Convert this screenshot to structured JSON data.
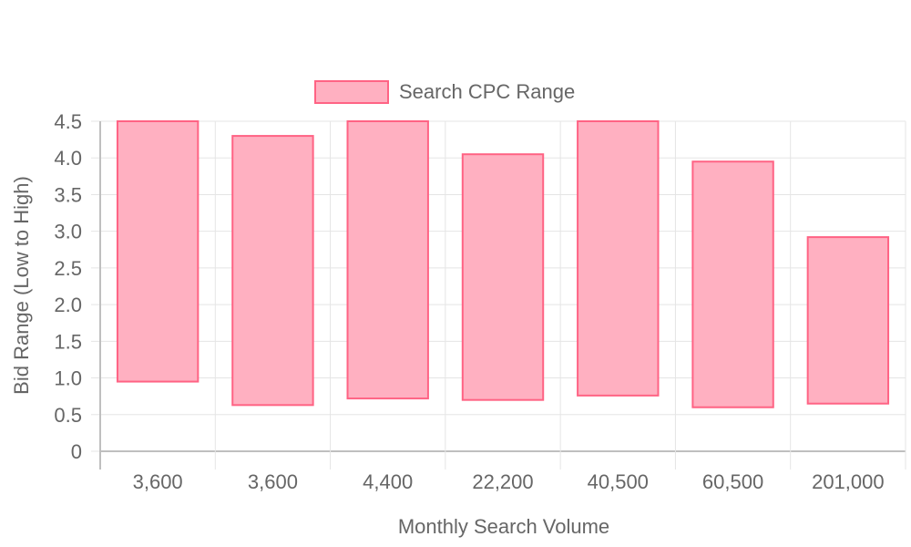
{
  "chart_data": {
    "type": "bar",
    "subtype": "floating-range",
    "categories": [
      "3,600",
      "3,600",
      "4,400",
      "22,200",
      "40,500",
      "60,500",
      "201,000"
    ],
    "series": [
      {
        "name": "Search CPC Range",
        "ranges": [
          [
            0.95,
            4.5
          ],
          [
            0.63,
            4.3
          ],
          [
            0.72,
            4.5
          ],
          [
            0.7,
            4.05
          ],
          [
            0.76,
            4.5
          ],
          [
            0.6,
            3.95
          ],
          [
            0.65,
            2.92
          ]
        ],
        "fill": "#ffb0c1",
        "stroke": "#ff6384"
      }
    ],
    "xlabel": "Monthly Search Volume",
    "ylabel": "Bid Range (Low to High)",
    "ylim": [
      0,
      4.5
    ],
    "yticks": [
      "0",
      "0.5",
      "1.0",
      "1.5",
      "2.0",
      "2.5",
      "3.0",
      "3.5",
      "4.0",
      "4.5"
    ],
    "grid": true,
    "legend": "top-center"
  }
}
